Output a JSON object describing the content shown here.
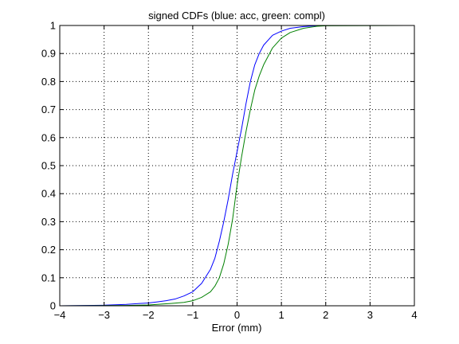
{
  "chart_data": {
    "type": "line",
    "title": "signed CDFs (blue: acc, green: compl)",
    "xlabel": "Error (mm)",
    "ylabel": "",
    "xlim": [
      -4,
      4
    ],
    "ylim": [
      0,
      1
    ],
    "xticks": [
      -4,
      -3,
      -2,
      -1,
      0,
      1,
      2,
      3,
      4
    ],
    "yticks": [
      0,
      0.1,
      0.2,
      0.3,
      0.4,
      0.5,
      0.6,
      0.7,
      0.8,
      0.9,
      1
    ],
    "xtick_labels": [
      "−4",
      "−3",
      "−2",
      "−1",
      "0",
      "1",
      "2",
      "3",
      "4"
    ],
    "ytick_labels": [
      "0",
      "0.1",
      "0.2",
      "0.3",
      "0.4",
      "0.5",
      "0.6",
      "0.7",
      "0.8",
      "0.9",
      "1"
    ],
    "grid": true,
    "colors": {
      "blue": "#0000ff",
      "green": "#008000"
    },
    "series": [
      {
        "color": "#0000ff",
        "x": [
          -4,
          -3,
          -2.5,
          -2.2,
          -2,
          -1.8,
          -1.6,
          -1.4,
          -1.2,
          -1,
          -0.8,
          -0.6,
          -0.5,
          -0.4,
          -0.3,
          -0.2,
          -0.1,
          0,
          0.1,
          0.2,
          0.3,
          0.4,
          0.5,
          0.6,
          0.8,
          1,
          1.2,
          1.5,
          1.8,
          2,
          4
        ],
        "y": [
          0,
          0.002,
          0.005,
          0.008,
          0.01,
          0.014,
          0.018,
          0.024,
          0.035,
          0.05,
          0.08,
          0.13,
          0.17,
          0.23,
          0.3,
          0.38,
          0.47,
          0.55,
          0.63,
          0.72,
          0.8,
          0.86,
          0.9,
          0.93,
          0.965,
          0.98,
          0.99,
          0.996,
          0.999,
          1,
          1
        ]
      },
      {
        "color": "#008000",
        "x": [
          -4,
          -2.5,
          -2,
          -1.5,
          -1.2,
          -1,
          -0.8,
          -0.6,
          -0.5,
          -0.4,
          -0.3,
          -0.2,
          -0.1,
          0,
          0.1,
          0.2,
          0.3,
          0.4,
          0.5,
          0.6,
          0.8,
          1,
          1.2,
          1.5,
          1.8,
          2,
          4
        ],
        "y": [
          0,
          0.001,
          0.003,
          0.008,
          0.012,
          0.018,
          0.03,
          0.05,
          0.07,
          0.1,
          0.15,
          0.22,
          0.31,
          0.43,
          0.53,
          0.62,
          0.7,
          0.77,
          0.82,
          0.86,
          0.92,
          0.955,
          0.975,
          0.99,
          0.997,
          0.999,
          1
        ]
      }
    ]
  }
}
